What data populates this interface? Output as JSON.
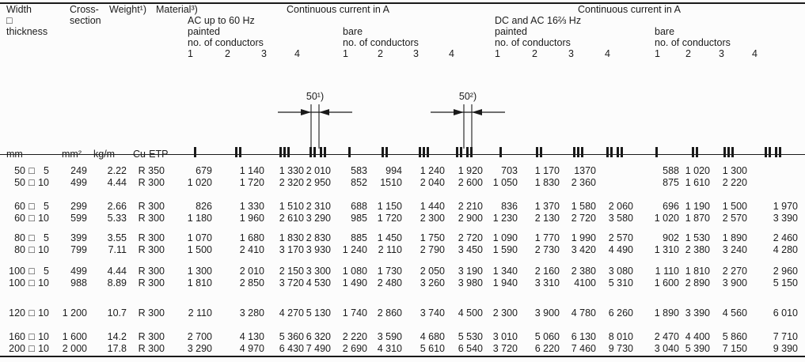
{
  "header": {
    "width_l1": "Width",
    "width_l2": "□",
    "width_l3": "thickness",
    "cross_l1": "Cross-",
    "cross_l2": "section",
    "weight": "Weight¹)",
    "material": "Material³)",
    "ac": {
      "title": "Continuous current in A",
      "freq": "AC up to 60 Hz",
      "painted": "painted",
      "bare": "bare",
      "conductors": "no. of conductors"
    },
    "dc": {
      "title": "Continuous current in A",
      "freq": "DC and AC 16⅔ Hz",
      "painted": "painted",
      "bare": "bare",
      "conductors": "no. of conductors"
    },
    "cond_nums": [
      "1",
      "2",
      "3",
      "4"
    ]
  },
  "diagrams": {
    "d1_label": "50¹)",
    "d2_label": "50²)"
  },
  "units": {
    "mm": "mm",
    "mm2": "mm²",
    "kgm": "kg/m",
    "material": "Cu-ETP",
    "dim_sep": "□",
    "icons": [
      "b1",
      "b2",
      "b3",
      "b22",
      "b1",
      "b2",
      "b3",
      "b22",
      "b1",
      "b2",
      "b3",
      "b22",
      "b1",
      "b2",
      "b3",
      "b22"
    ]
  },
  "table": {
    "rows": [
      {
        "gap": 0,
        "w": "50",
        "t": "5",
        "cross": "249",
        "weight": "2.22",
        "material": "R 350",
        "values": [
          "679",
          "1 140",
          "1 330",
          "2 010",
          "583",
          "994",
          "1 240",
          "1 920",
          "703",
          "1 170",
          "1370",
          "",
          "588",
          "1 020",
          "1 300",
          ""
        ]
      },
      {
        "gap": 0,
        "w": "50",
        "t": "10",
        "cross": "499",
        "weight": "4.44",
        "material": "R 300",
        "values": [
          "1 020",
          "1 720",
          "2 320",
          "2 950",
          "852",
          "1510",
          "2 040",
          "2 600",
          "1 050",
          "1 830",
          "2 360",
          "",
          "875",
          "1 610",
          "2 220",
          ""
        ]
      },
      {
        "gap": 15,
        "w": "60",
        "t": "5",
        "cross": "299",
        "weight": "2.66",
        "material": "R 300",
        "values": [
          "826",
          "1 330",
          "1 510",
          "2 310",
          "688",
          "1 150",
          "1 440",
          "2 210",
          "836",
          "1 370",
          "1 580",
          "2 060",
          "696",
          "1 190",
          "1 500",
          "1 970"
        ]
      },
      {
        "gap": 0,
        "w": "60",
        "t": "10",
        "cross": "599",
        "weight": "5.33",
        "material": "R 300",
        "values": [
          "1 180",
          "1 960",
          "2 610",
          "3 290",
          "985",
          "1 720",
          "2 300",
          "2 900",
          "1 230",
          "2 130",
          "2 720",
          "3 580",
          "1 020",
          "1 870",
          "2 570",
          "3 390"
        ]
      },
      {
        "gap": 10,
        "w": "80",
        "t": "5",
        "cross": "399",
        "weight": "3.55",
        "material": "R 300",
        "values": [
          "1 070",
          "1 680",
          "1 830",
          "2 830",
          "885",
          "1 450",
          "1 750",
          "2 720",
          "1 090",
          "1 770",
          "1 990",
          "2 570",
          "902",
          "1 530",
          "1 890",
          "2 460"
        ]
      },
      {
        "gap": 0,
        "w": "80",
        "t": "10",
        "cross": "799",
        "weight": "7.11",
        "material": "R 300",
        "values": [
          "1 500",
          "2 410",
          "3 170",
          "3 930",
          "1 240",
          "2 110",
          "2 790",
          "3 450",
          "1 590",
          "2 730",
          "3 420",
          "4 490",
          "1 310",
          "2 380",
          "3 240",
          "4 280"
        ]
      },
      {
        "gap": 12,
        "w": "100",
        "t": "5",
        "cross": "499",
        "weight": "4.44",
        "material": "R 300",
        "values": [
          "1 300",
          "2 010",
          "2 150",
          "3 300",
          "1 080",
          "1 730",
          "2 050",
          "3 190",
          "1 340",
          "2 160",
          "2 380",
          "3 080",
          "1 110",
          "1 810",
          "2 270",
          "2 960"
        ]
      },
      {
        "gap": 0,
        "w": "100",
        "t": "10",
        "cross": "988",
        "weight": "8.89",
        "material": "R 300",
        "values": [
          "1 810",
          "2 850",
          "3 720",
          "4 530",
          "1 490",
          "2 480",
          "3 260",
          "3 980",
          "1 940",
          "3 310",
          "4100",
          "5 310",
          "1 600",
          "2 890",
          "3 900",
          "5 150"
        ]
      },
      {
        "gap": 23,
        "w": "120",
        "t": "10",
        "cross": "1 200",
        "weight": "10.7",
        "material": "R 300",
        "values": [
          "2 110",
          "3 280",
          "4 270",
          "5 130",
          "1 740",
          "2 860",
          "3 740",
          "4 500",
          "2 300",
          "3 900",
          "4 780",
          "6 260",
          "1 890",
          "3 390",
          "4 560",
          "6 010"
        ]
      },
      {
        "gap": 15,
        "w": "160",
        "t": "10",
        "cross": "1 600",
        "weight": "14.2",
        "material": "R 300",
        "values": [
          "2 700",
          "4 130",
          "5 360",
          "6 320",
          "2 220",
          "3 590",
          "4 680",
          "5 530",
          "3 010",
          "5 060",
          "6 130",
          "8 010",
          "2 470",
          "4 400",
          "5 860",
          "7 710"
        ]
      },
      {
        "gap": 0,
        "w": "200",
        "t": "10",
        "cross": "2 000",
        "weight": "17.8",
        "material": "R 300",
        "values": [
          "3 290",
          "4 970",
          "6 430",
          "7 490",
          "2 690",
          "4 310",
          "5 610",
          "6 540",
          "3 720",
          "6 220",
          "7 460",
          "9 730",
          "3 040",
          "5 390",
          "7 150",
          "9 390"
        ]
      }
    ]
  }
}
